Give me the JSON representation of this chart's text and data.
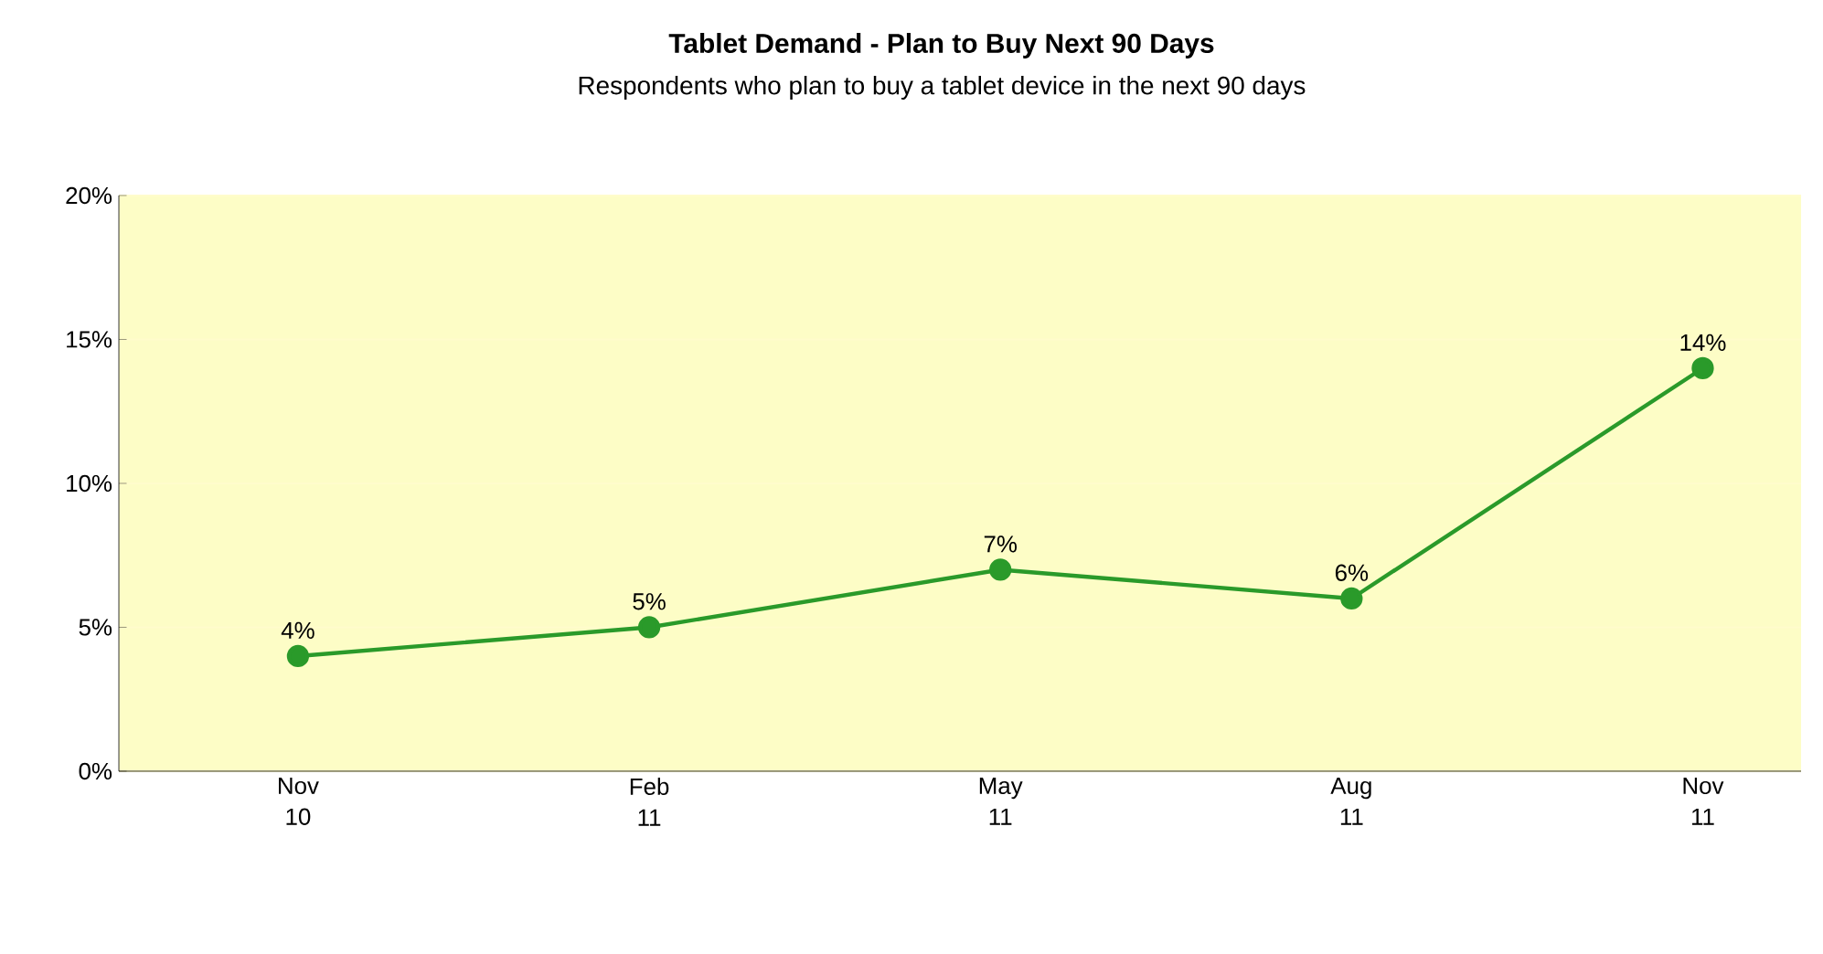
{
  "chart_data": {
    "type": "line",
    "title": "Tablet Demand - Plan to Buy Next 90 Days",
    "subtitle": "Respondents who plan to buy a tablet device in the next 90 days",
    "categories": [
      "Nov 10",
      "Feb 11",
      "May 11",
      "Aug 11",
      "Nov 11"
    ],
    "series": [
      {
        "color": "#2a9a2a",
        "values": [
          4,
          5,
          7,
          6,
          14
        ],
        "value_labels": [
          "4%",
          "5%",
          "7%",
          "6%",
          "14%"
        ]
      }
    ],
    "ylim": [
      0,
      20
    ],
    "yticks": [
      {
        "value": 0,
        "label": "0%"
      },
      {
        "value": 5,
        "label": "5%"
      },
      {
        "value": 10,
        "label": "10%"
      },
      {
        "value": 15,
        "label": "15%"
      },
      {
        "value": 20,
        "label": "20%"
      }
    ],
    "grid": "y",
    "marker": "circle",
    "line_style": "solid"
  }
}
